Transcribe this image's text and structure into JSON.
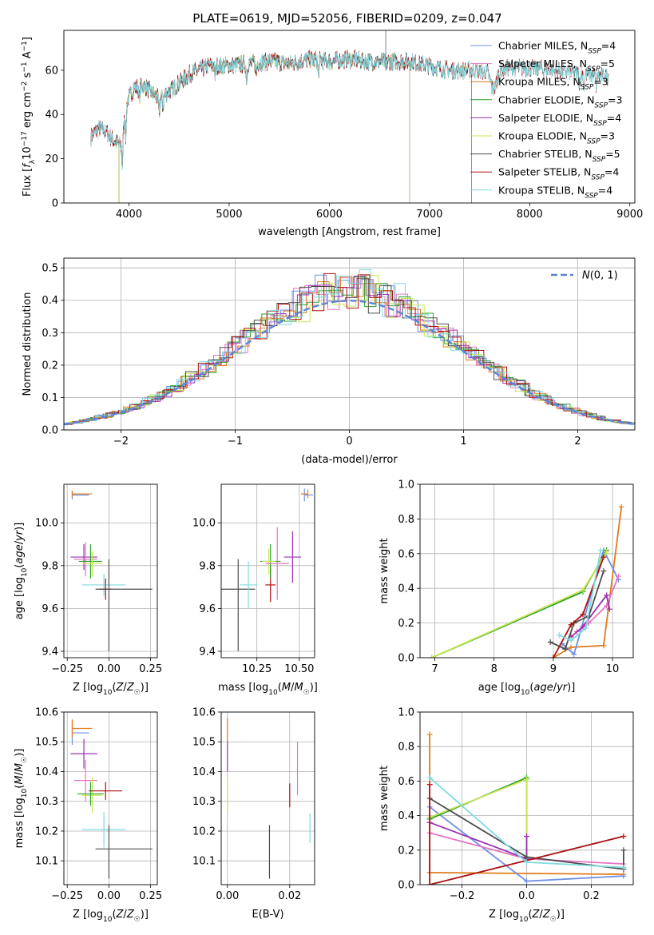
{
  "figure": {
    "title": "PLATE=0619, MJD=52056, FIBERID=0209, z=0.047"
  },
  "colors": {
    "chabrier_miles": "#6f8fe6",
    "salpeter_miles": "#e377c2",
    "kroupa_miles": "#e07b1a",
    "chabrier_elodie": "#2ca02c",
    "salpeter_elodie": "#9b30b0",
    "kroupa_elodie": "#c8e655",
    "chabrier_stelib": "#4d4d4d",
    "salpeter_stelib": "#b01010",
    "kroupa_stelib": "#80dbe0"
  },
  "chart_data": [
    {
      "id": "spectrum",
      "type": "line",
      "xlabel": "wavelength [Angstrom, rest frame]",
      "ylabel": "Flux [f_λ10^-17 erg cm^-2 s^-1 A^-1]",
      "xlim": [
        3350,
        9050
      ],
      "ylim": [
        0,
        78
      ],
      "xticks": [
        4000,
        5000,
        6000,
        7000,
        8000,
        9000
      ],
      "yticks": [
        0,
        20,
        40,
        60
      ],
      "grid": false,
      "legend_position": "top-right",
      "legend": [
        {
          "label": "Chabrier MILES, N_SSP=4",
          "color_key": "chabrier_miles"
        },
        {
          "label": "Salpeter MILES, N_SSP=5",
          "color_key": "salpeter_miles"
        },
        {
          "label": "Kroupa MILES, N_SSP=3",
          "color_key": "kroupa_miles"
        },
        {
          "label": "Chabrier ELODIE, N_SSP=3",
          "color_key": "chabrier_elodie"
        },
        {
          "label": "Salpeter ELODIE, N_SSP=4",
          "color_key": "salpeter_elodie"
        },
        {
          "label": "Kroupa ELODIE, N_SSP=3",
          "color_key": "kroupa_elodie"
        },
        {
          "label": "Chabrier STELIB, N_SSP=5",
          "color_key": "chabrier_stelib"
        },
        {
          "label": "Salpeter STELIB, N_SSP=4",
          "color_key": "salpeter_stelib"
        },
        {
          "label": "Kroupa STELIB, N_SSP=4",
          "color_key": "kroupa_stelib"
        }
      ],
      "continuum": [
        [
          3620,
          30
        ],
        [
          3700,
          34
        ],
        [
          3780,
          32
        ],
        [
          3850,
          28
        ],
        [
          3920,
          26
        ],
        [
          3980,
          46
        ],
        [
          4050,
          52
        ],
        [
          4150,
          53
        ],
        [
          4300,
          47
        ],
        [
          4450,
          52
        ],
        [
          4600,
          58
        ],
        [
          4800,
          62
        ],
        [
          5000,
          62
        ],
        [
          5200,
          63
        ],
        [
          5400,
          64
        ],
        [
          5600,
          63
        ],
        [
          5800,
          65
        ],
        [
          6000,
          64
        ],
        [
          6200,
          65
        ],
        [
          6400,
          64
        ],
        [
          6600,
          64
        ],
        [
          6800,
          64
        ],
        [
          7000,
          62
        ],
        [
          7200,
          60
        ],
        [
          7400,
          60
        ],
        [
          7600,
          59
        ],
        [
          7800,
          61
        ],
        [
          8000,
          61
        ],
        [
          8200,
          60
        ],
        [
          8400,
          59
        ],
        [
          8600,
          58
        ],
        [
          8790,
          57
        ]
      ],
      "series_ranges": [
        {
          "color_key": "chabrier_miles",
          "x": [
            3620,
            7420
          ]
        },
        {
          "color_key": "salpeter_miles",
          "x": [
            3620,
            7420
          ]
        },
        {
          "color_key": "kroupa_miles",
          "x": [
            3620,
            7420
          ]
        },
        {
          "color_key": "chabrier_elodie",
          "x": [
            3900,
            6800
          ]
        },
        {
          "color_key": "salpeter_elodie",
          "x": [
            3900,
            6800
          ]
        },
        {
          "color_key": "kroupa_elodie",
          "x": [
            3900,
            6800
          ]
        },
        {
          "color_key": "chabrier_stelib",
          "x": [
            3620,
            8790
          ]
        },
        {
          "color_key": "salpeter_stelib",
          "x": [
            3620,
            8790
          ]
        },
        {
          "color_key": "kroupa_stelib",
          "x": [
            3620,
            8790
          ]
        }
      ]
    },
    {
      "id": "residuals",
      "type": "histogram",
      "xlabel": "(data-model)/error",
      "ylabel": "Normed distribution",
      "xlim": [
        -2.5,
        2.5
      ],
      "ylim": [
        0,
        0.53
      ],
      "xticks": [
        -2,
        -1,
        0,
        1,
        2
      ],
      "yticks": [
        0.0,
        0.1,
        0.2,
        0.3,
        0.4,
        0.5
      ],
      "grid": true,
      "legend_position": "top-right",
      "legend_label": "N(0,1)",
      "bin_width": 0.1,
      "bin_start": -2.5,
      "reference_curve": "normal(0,1)"
    },
    {
      "id": "age_vs_Z",
      "type": "scatter",
      "xlabel": "Z [log10(Z/Z☉)]",
      "ylabel": "age [log10(age/yr)]",
      "xlim": [
        -0.27,
        0.29
      ],
      "ylim": [
        9.37,
        10.18
      ],
      "xticks": [
        -0.25,
        0.0,
        0.25
      ],
      "yticks": [
        9.4,
        9.6,
        9.8,
        10.0
      ],
      "grid": true,
      "points": [
        {
          "color_key": "chabrier_miles",
          "x": -0.22,
          "xerr": [
            0.0,
            0.1
          ],
          "y": 10.13,
          "yerr": 0.02
        },
        {
          "color_key": "kroupa_miles",
          "x": -0.22,
          "xerr": [
            0.0,
            0.12
          ],
          "y": 10.135,
          "yerr": 0.015
        },
        {
          "color_key": "salpeter_elodie",
          "x": -0.15,
          "xerr": 0.08,
          "y": 9.84,
          "yerr": 0.06
        },
        {
          "color_key": "salpeter_miles",
          "x": -0.14,
          "xerr": 0.07,
          "y": 9.83,
          "yerr": 0.08
        },
        {
          "color_key": "chabrier_elodie",
          "x": -0.11,
          "xerr": 0.07,
          "y": 9.82,
          "yerr": 0.08
        },
        {
          "color_key": "kroupa_elodie",
          "x": -0.1,
          "xerr": 0.06,
          "y": 9.81,
          "yerr": 0.06
        },
        {
          "color_key": "kroupa_stelib",
          "x": -0.03,
          "xerr": 0.13,
          "y": 9.71,
          "yerr": 0.05
        },
        {
          "color_key": "salpeter_stelib",
          "x": -0.02,
          "xerr": 0.04,
          "y": 9.69,
          "yerr": 0.05
        },
        {
          "color_key": "chabrier_stelib",
          "x": 0.0,
          "xerr": [
            0.08,
            0.26
          ],
          "y": 9.69,
          "yerr": [
            0.29,
            0.14
          ]
        }
      ]
    },
    {
      "id": "age_vs_mass",
      "type": "scatter",
      "xlabel": "mass [log10(M/M☉)]",
      "xlim": [
        10.04,
        10.59
      ],
      "ylim": [
        9.37,
        10.18
      ],
      "xticks": [
        10.25,
        10.5
      ],
      "yticks": [
        9.4,
        9.6,
        9.8,
        10.0
      ],
      "grid": true,
      "points": [
        {
          "color_key": "chabrier_stelib",
          "x": 10.14,
          "xerr": 0.1,
          "y": 9.69,
          "yerr": [
            0.29,
            0.14
          ]
        },
        {
          "color_key": "kroupa_stelib",
          "x": 10.2,
          "xerr": 0.05,
          "y": 9.71,
          "yerr": 0.11
        },
        {
          "color_key": "salpeter_stelib",
          "x": 10.33,
          "xerr": 0.03,
          "y": 9.71,
          "yerr": 0.08
        },
        {
          "color_key": "chabrier_elodie",
          "x": 10.33,
          "xerr": 0.06,
          "y": 9.82,
          "yerr": 0.08
        },
        {
          "color_key": "kroupa_elodie",
          "x": 10.32,
          "xerr": 0.04,
          "y": 9.82,
          "yerr": 0.06
        },
        {
          "color_key": "salpeter_miles",
          "x": 10.37,
          "xerr": 0.07,
          "y": 9.81,
          "yerr": 0.17
        },
        {
          "color_key": "salpeter_elodie",
          "x": 10.46,
          "xerr": 0.05,
          "y": 9.84,
          "yerr": 0.12
        },
        {
          "color_key": "chabrier_miles",
          "x": 10.53,
          "xerr": [
            0.0,
            0.05
          ],
          "y": 10.13,
          "yerr": 0.03
        },
        {
          "color_key": "kroupa_miles",
          "x": 10.55,
          "xerr": [
            0.04,
            0.0
          ],
          "y": 10.135,
          "yerr": 0.02
        }
      ]
    },
    {
      "id": "weight_vs_age",
      "type": "line",
      "xlabel": "age [log10(age/yr)]",
      "ylabel": "mass weight",
      "xlim": [
        6.75,
        10.35
      ],
      "ylim": [
        0,
        1.0
      ],
      "xticks": [
        7,
        8,
        9,
        10
      ],
      "yticks": [
        0.0,
        0.2,
        0.4,
        0.6,
        0.8,
        1.0
      ],
      "grid": true,
      "series": [
        {
          "color_key": "kroupa_miles",
          "x": [
            9.0,
            9.3,
            9.85,
            10.15
          ],
          "y": [
            0.0,
            0.06,
            0.07,
            0.87
          ]
        },
        {
          "color_key": "chabrier_miles",
          "x": [
            9.15,
            9.35,
            9.85,
            10.1
          ],
          "y": [
            0.08,
            0.02,
            0.62,
            0.45
          ]
        },
        {
          "color_key": "salpeter_miles",
          "x": [
            9.4,
            9.6,
            9.9,
            10.1
          ],
          "y": [
            0.15,
            0.2,
            0.3,
            0.47
          ]
        },
        {
          "color_key": "chabrier_elodie",
          "x": [
            6.95,
            9.5,
            9.9
          ],
          "y": [
            0.0,
            0.38,
            0.62
          ]
        },
        {
          "color_key": "kroupa_elodie",
          "x": [
            6.95,
            9.5,
            9.9
          ],
          "y": [
            0.0,
            0.39,
            0.61
          ]
        },
        {
          "color_key": "salpeter_elodie",
          "x": [
            9.3,
            9.5,
            9.9,
            9.95
          ],
          "y": [
            0.12,
            0.18,
            0.36,
            0.28
          ]
        },
        {
          "color_key": "chabrier_stelib",
          "x": [
            8.95,
            9.2,
            9.35,
            9.6,
            9.85
          ],
          "y": [
            0.09,
            0.05,
            0.2,
            0.24,
            0.5
          ]
        },
        {
          "color_key": "salpeter_stelib",
          "x": [
            9.0,
            9.3,
            9.5,
            9.85
          ],
          "y": [
            0.0,
            0.19,
            0.25,
            0.58
          ]
        },
        {
          "color_key": "kroupa_stelib",
          "x": [
            9.1,
            9.3,
            9.55,
            9.8
          ],
          "y": [
            0.13,
            0.1,
            0.17,
            0.62
          ]
        }
      ]
    },
    {
      "id": "mass_vs_Z",
      "type": "scatter",
      "xlabel": "Z [log10(Z/Z☉)]",
      "ylabel": "mass [log10(M/M☉)]",
      "xlim": [
        -0.27,
        0.29
      ],
      "ylim": [
        10.02,
        10.6
      ],
      "xticks": [
        -0.25,
        0.0,
        0.25
      ],
      "yticks": [
        10.1,
        10.2,
        10.3,
        10.4,
        10.5,
        10.6
      ],
      "grid": true,
      "points": [
        {
          "color_key": "chabrier_miles",
          "x": -0.22,
          "xerr": [
            0.0,
            0.1
          ],
          "y": 10.53,
          "yerr": 0.04
        },
        {
          "color_key": "kroupa_miles",
          "x": -0.22,
          "xerr": [
            0.0,
            0.12
          ],
          "y": 10.545,
          "yerr": 0.03
        },
        {
          "color_key": "salpeter_elodie",
          "x": -0.15,
          "xerr": 0.08,
          "y": 10.46,
          "yerr": 0.05
        },
        {
          "color_key": "salpeter_miles",
          "x": -0.14,
          "xerr": 0.07,
          "y": 10.37,
          "yerr": 0.07
        },
        {
          "color_key": "kroupa_elodie",
          "x": -0.1,
          "xerr": 0.06,
          "y": 10.32,
          "yerr": 0.06
        },
        {
          "color_key": "chabrier_elodie",
          "x": -0.11,
          "xerr": 0.08,
          "y": 10.325,
          "yerr": 0.04
        },
        {
          "color_key": "salpeter_stelib",
          "x": -0.02,
          "xerr": 0.1,
          "y": 10.335,
          "yerr": 0.03
        },
        {
          "color_key": "kroupa_stelib",
          "x": -0.03,
          "xerr": 0.13,
          "y": 10.205,
          "yerr": 0.06
        },
        {
          "color_key": "chabrier_stelib",
          "x": 0.0,
          "xerr": [
            0.08,
            0.26
          ],
          "y": 10.14,
          "yerr": [
            0.1,
            0.08
          ]
        }
      ]
    },
    {
      "id": "mass_vs_ebv",
      "type": "scatter",
      "xlabel": "E(B-V)",
      "xlim": [
        -0.002,
        0.028
      ],
      "ylim": [
        10.02,
        10.6
      ],
      "xticks": [
        0.0,
        0.02
      ],
      "yticks": [
        10.1,
        10.2,
        10.3,
        10.4,
        10.5,
        10.6
      ],
      "grid": true,
      "points": [
        {
          "color_key": "kroupa_miles",
          "x": 0.0,
          "y": 10.54,
          "yerr": 0.04
        },
        {
          "color_key": "salpeter_elodie",
          "x": 0.0,
          "y": 10.45,
          "yerr": 0.05
        },
        {
          "color_key": "kroupa_elodie",
          "x": 0.0,
          "y": 10.32,
          "yerr": 0.06
        },
        {
          "color_key": "chabrier_stelib",
          "x": 0.0135,
          "y": 10.13,
          "yerr": 0.09
        },
        {
          "color_key": "salpeter_stelib",
          "x": 0.02,
          "y": 10.32,
          "yerr": 0.04
        },
        {
          "color_key": "salpeter_miles",
          "x": 0.0225,
          "y": 10.41,
          "yerr": 0.09
        },
        {
          "color_key": "kroupa_stelib",
          "x": 0.0265,
          "y": 10.21,
          "yerr": 0.05
        }
      ]
    },
    {
      "id": "weight_vs_Z",
      "type": "line",
      "xlabel": "Z [log10(Z/Z☉)]",
      "ylabel": "mass weight",
      "xlim": [
        -0.33,
        0.33
      ],
      "ylim": [
        0,
        1.0
      ],
      "xticks": [
        -0.2,
        0.0,
        0.2
      ],
      "yticks": [
        0.0,
        0.2,
        0.4,
        0.6,
        0.8,
        1.0
      ],
      "grid": true,
      "series": [
        {
          "color_key": "kroupa_miles",
          "x": [
            -0.3,
            -0.3,
            0.3
          ],
          "y": [
            0.87,
            0.07,
            0.06
          ]
        },
        {
          "color_key": "chabrier_miles",
          "x": [
            -0.3,
            0.0,
            0.3
          ],
          "y": [
            0.45,
            0.02,
            0.05
          ]
        },
        {
          "color_key": "salpeter_miles",
          "x": [
            -0.3,
            0.0,
            0.3
          ],
          "y": [
            0.3,
            0.15,
            0.12
          ]
        },
        {
          "color_key": "chabrier_elodie",
          "x": [
            -0.3,
            0.0,
            0.0
          ],
          "y": [
            0.38,
            0.62,
            0.15
          ]
        },
        {
          "color_key": "kroupa_elodie",
          "x": [
            -0.3,
            0.0,
            0.0
          ],
          "y": [
            0.39,
            0.61,
            0.15
          ]
        },
        {
          "color_key": "salpeter_elodie",
          "x": [
            -0.3,
            0.0,
            0.0
          ],
          "y": [
            0.36,
            0.15,
            0.28
          ]
        },
        {
          "color_key": "chabrier_stelib",
          "x": [
            -0.3,
            0.0,
            0.3,
            0.3
          ],
          "y": [
            0.5,
            0.16,
            0.09,
            0.2
          ]
        },
        {
          "color_key": "salpeter_stelib",
          "x": [
            -0.3,
            -0.3,
            0.3
          ],
          "y": [
            0.58,
            0.0,
            0.28
          ]
        },
        {
          "color_key": "kroupa_stelib",
          "x": [
            -0.3,
            0.0,
            0.3
          ],
          "y": [
            0.62,
            0.13,
            0.1
          ]
        }
      ]
    }
  ]
}
